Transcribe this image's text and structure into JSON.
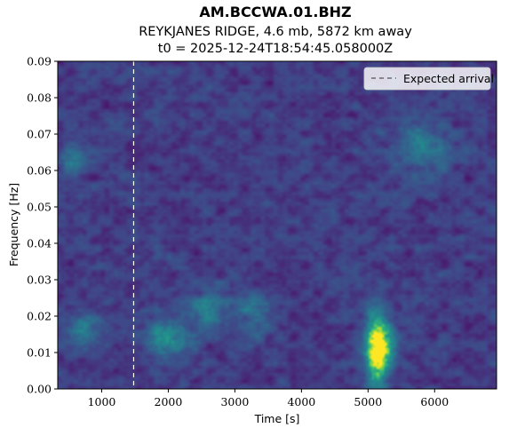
{
  "chart_data": {
    "type": "heatmap",
    "title": "AM.BCCWA.01.BHZ",
    "subtitle": "REYKJANES RIDGE, 4.6 mb, 5872 km away",
    "subtitle2": "t0 = 2025-12-24T18:54:45.058000Z",
    "xlabel": "Time [s]",
    "ylabel": "Frequency [Hz]",
    "xlim": [
      340,
      6930
    ],
    "ylim": [
      0.0,
      0.09
    ],
    "x_ticks": [
      {
        "value": 1000,
        "label": "1000"
      },
      {
        "value": 2000,
        "label": "2000"
      },
      {
        "value": 3000,
        "label": "3000"
      },
      {
        "value": 4000,
        "label": "4000"
      },
      {
        "value": 5000,
        "label": "5000"
      },
      {
        "value": 6000,
        "label": "6000"
      }
    ],
    "y_ticks": [
      {
        "value": 0.0,
        "label": "0.00"
      },
      {
        "value": 0.01,
        "label": "0.01"
      },
      {
        "value": 0.02,
        "label": "0.02"
      },
      {
        "value": 0.03,
        "label": "0.03"
      },
      {
        "value": 0.04,
        "label": "0.04"
      },
      {
        "value": 0.05,
        "label": "0.05"
      },
      {
        "value": 0.06,
        "label": "0.06"
      },
      {
        "value": 0.07,
        "label": "0.07"
      },
      {
        "value": 0.08,
        "label": "0.08"
      },
      {
        "value": 0.09,
        "label": "0.09"
      }
    ],
    "colormap": "viridis",
    "expected_arrival": {
      "x": 1480,
      "label": "Expected arrival",
      "color": "#ffffff"
    },
    "legend_position": "upper right",
    "energy_features": [
      {
        "t": 5110,
        "f": 0.011,
        "st": 110,
        "sf": 0.007,
        "amp": 1.0
      },
      {
        "t": 5300,
        "f": 0.012,
        "st": 90,
        "sf": 0.006,
        "amp": 0.35
      },
      {
        "t": 1950,
        "f": 0.014,
        "st": 250,
        "sf": 0.004,
        "amp": 0.45
      },
      {
        "t": 2600,
        "f": 0.022,
        "st": 200,
        "sf": 0.004,
        "amp": 0.35
      },
      {
        "t": 700,
        "f": 0.016,
        "st": 200,
        "sf": 0.004,
        "amp": 0.3
      },
      {
        "t": 550,
        "f": 0.063,
        "st": 150,
        "sf": 0.003,
        "amp": 0.35
      },
      {
        "t": 5800,
        "f": 0.067,
        "st": 300,
        "sf": 0.005,
        "amp": 0.3
      },
      {
        "t": 3300,
        "f": 0.021,
        "st": 200,
        "sf": 0.004,
        "amp": 0.3
      }
    ]
  }
}
